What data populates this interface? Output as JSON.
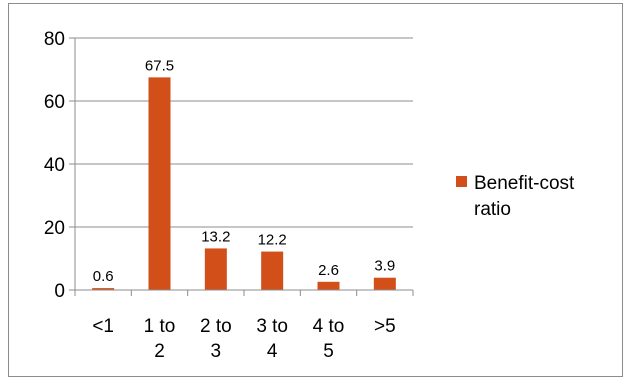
{
  "chart_data": {
    "type": "bar",
    "categories": [
      [
        "<1"
      ],
      [
        "1 to",
        "2"
      ],
      [
        "2 to",
        "3"
      ],
      [
        "3 to",
        "4"
      ],
      [
        "4 to",
        "5"
      ],
      [
        ">5"
      ]
    ],
    "series": [
      {
        "name": "Benefit-cost ratio",
        "values": [
          0.6,
          67.5,
          13.2,
          12.2,
          2.6,
          3.9
        ],
        "color": "#d24f1a"
      }
    ],
    "data_labels": [
      "0.6",
      "67.5",
      "13.2",
      "12.2",
      "2.6",
      "3.9"
    ],
    "ylim": [
      0,
      80
    ],
    "yticks": [
      0,
      20,
      40,
      60,
      80
    ],
    "grid": true,
    "legend": {
      "position": "right",
      "lines": [
        "Benefit-cost",
        "ratio"
      ]
    },
    "title": "",
    "xlabel": "",
    "ylabel": ""
  }
}
